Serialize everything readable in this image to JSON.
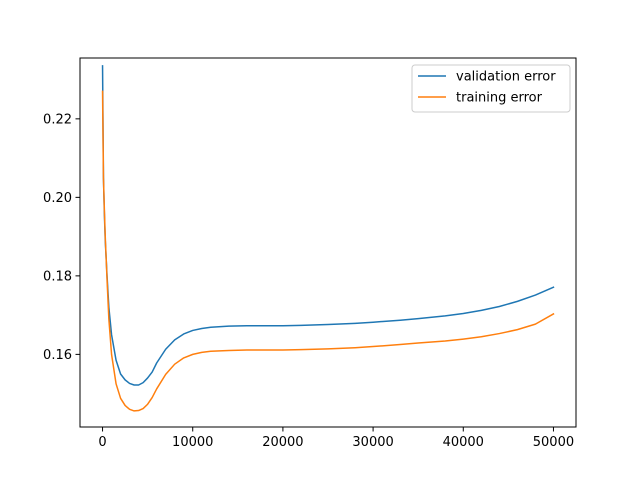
{
  "chart_data": {
    "type": "line",
    "title": "",
    "xlabel": "",
    "ylabel": "",
    "xlim": [
      -2500,
      52500
    ],
    "ylim": [
      0.1415,
      0.2355
    ],
    "x_ticks": [
      0,
      10000,
      20000,
      30000,
      40000,
      50000
    ],
    "x_tick_labels": [
      "0",
      "10000",
      "20000",
      "30000",
      "40000",
      "50000"
    ],
    "y_ticks": [
      0.16,
      0.18,
      0.2,
      0.22
    ],
    "y_tick_labels": [
      "0.16",
      "0.18",
      "0.20",
      "0.22"
    ],
    "grid": false,
    "legend_position": "upper right",
    "series": [
      {
        "name": "validation error",
        "color": "#1f77b4",
        "x": [
          0,
          100,
          200,
          300,
          500,
          700,
          1000,
          1500,
          2000,
          2500,
          3000,
          3500,
          4000,
          4500,
          5000,
          5500,
          6000,
          7000,
          8000,
          9000,
          10000,
          11000,
          12000,
          14000,
          16000,
          18000,
          20000,
          22000,
          25000,
          28000,
          30000,
          33000,
          35000,
          38000,
          40000,
          42000,
          44000,
          46000,
          48000,
          50000
        ],
        "y": [
          0.2335,
          0.205,
          0.196,
          0.189,
          0.18,
          0.172,
          0.165,
          0.1585,
          0.155,
          0.1535,
          0.1526,
          0.1522,
          0.1522,
          0.1528,
          0.154,
          0.1555,
          0.1578,
          0.1613,
          0.1637,
          0.1652,
          0.1661,
          0.1666,
          0.1669,
          0.1672,
          0.1673,
          0.1673,
          0.1673,
          0.1674,
          0.1676,
          0.1679,
          0.1682,
          0.1687,
          0.1691,
          0.1698,
          0.1704,
          0.1712,
          0.1722,
          0.1735,
          0.1751,
          0.1771
        ]
      },
      {
        "name": "training error",
        "color": "#ff7f0e",
        "x": [
          0,
          100,
          200,
          300,
          500,
          700,
          1000,
          1500,
          2000,
          2500,
          3000,
          3500,
          4000,
          4500,
          5000,
          5500,
          6000,
          7000,
          8000,
          9000,
          10000,
          11000,
          12000,
          14000,
          16000,
          18000,
          20000,
          22000,
          25000,
          28000,
          30000,
          33000,
          35000,
          38000,
          40000,
          42000,
          44000,
          46000,
          48000,
          50000
        ],
        "y": [
          0.227,
          0.205,
          0.197,
          0.19,
          0.179,
          0.169,
          0.16,
          0.1525,
          0.1488,
          0.147,
          0.146,
          0.1456,
          0.1457,
          0.1462,
          0.1473,
          0.149,
          0.1512,
          0.1549,
          0.1575,
          0.1591,
          0.16,
          0.1605,
          0.1608,
          0.161,
          0.1611,
          0.1611,
          0.1611,
          0.1612,
          0.1614,
          0.1617,
          0.162,
          0.1625,
          0.1629,
          0.1634,
          0.1639,
          0.1645,
          0.1653,
          0.1663,
          0.1677,
          0.1703
        ]
      }
    ]
  }
}
